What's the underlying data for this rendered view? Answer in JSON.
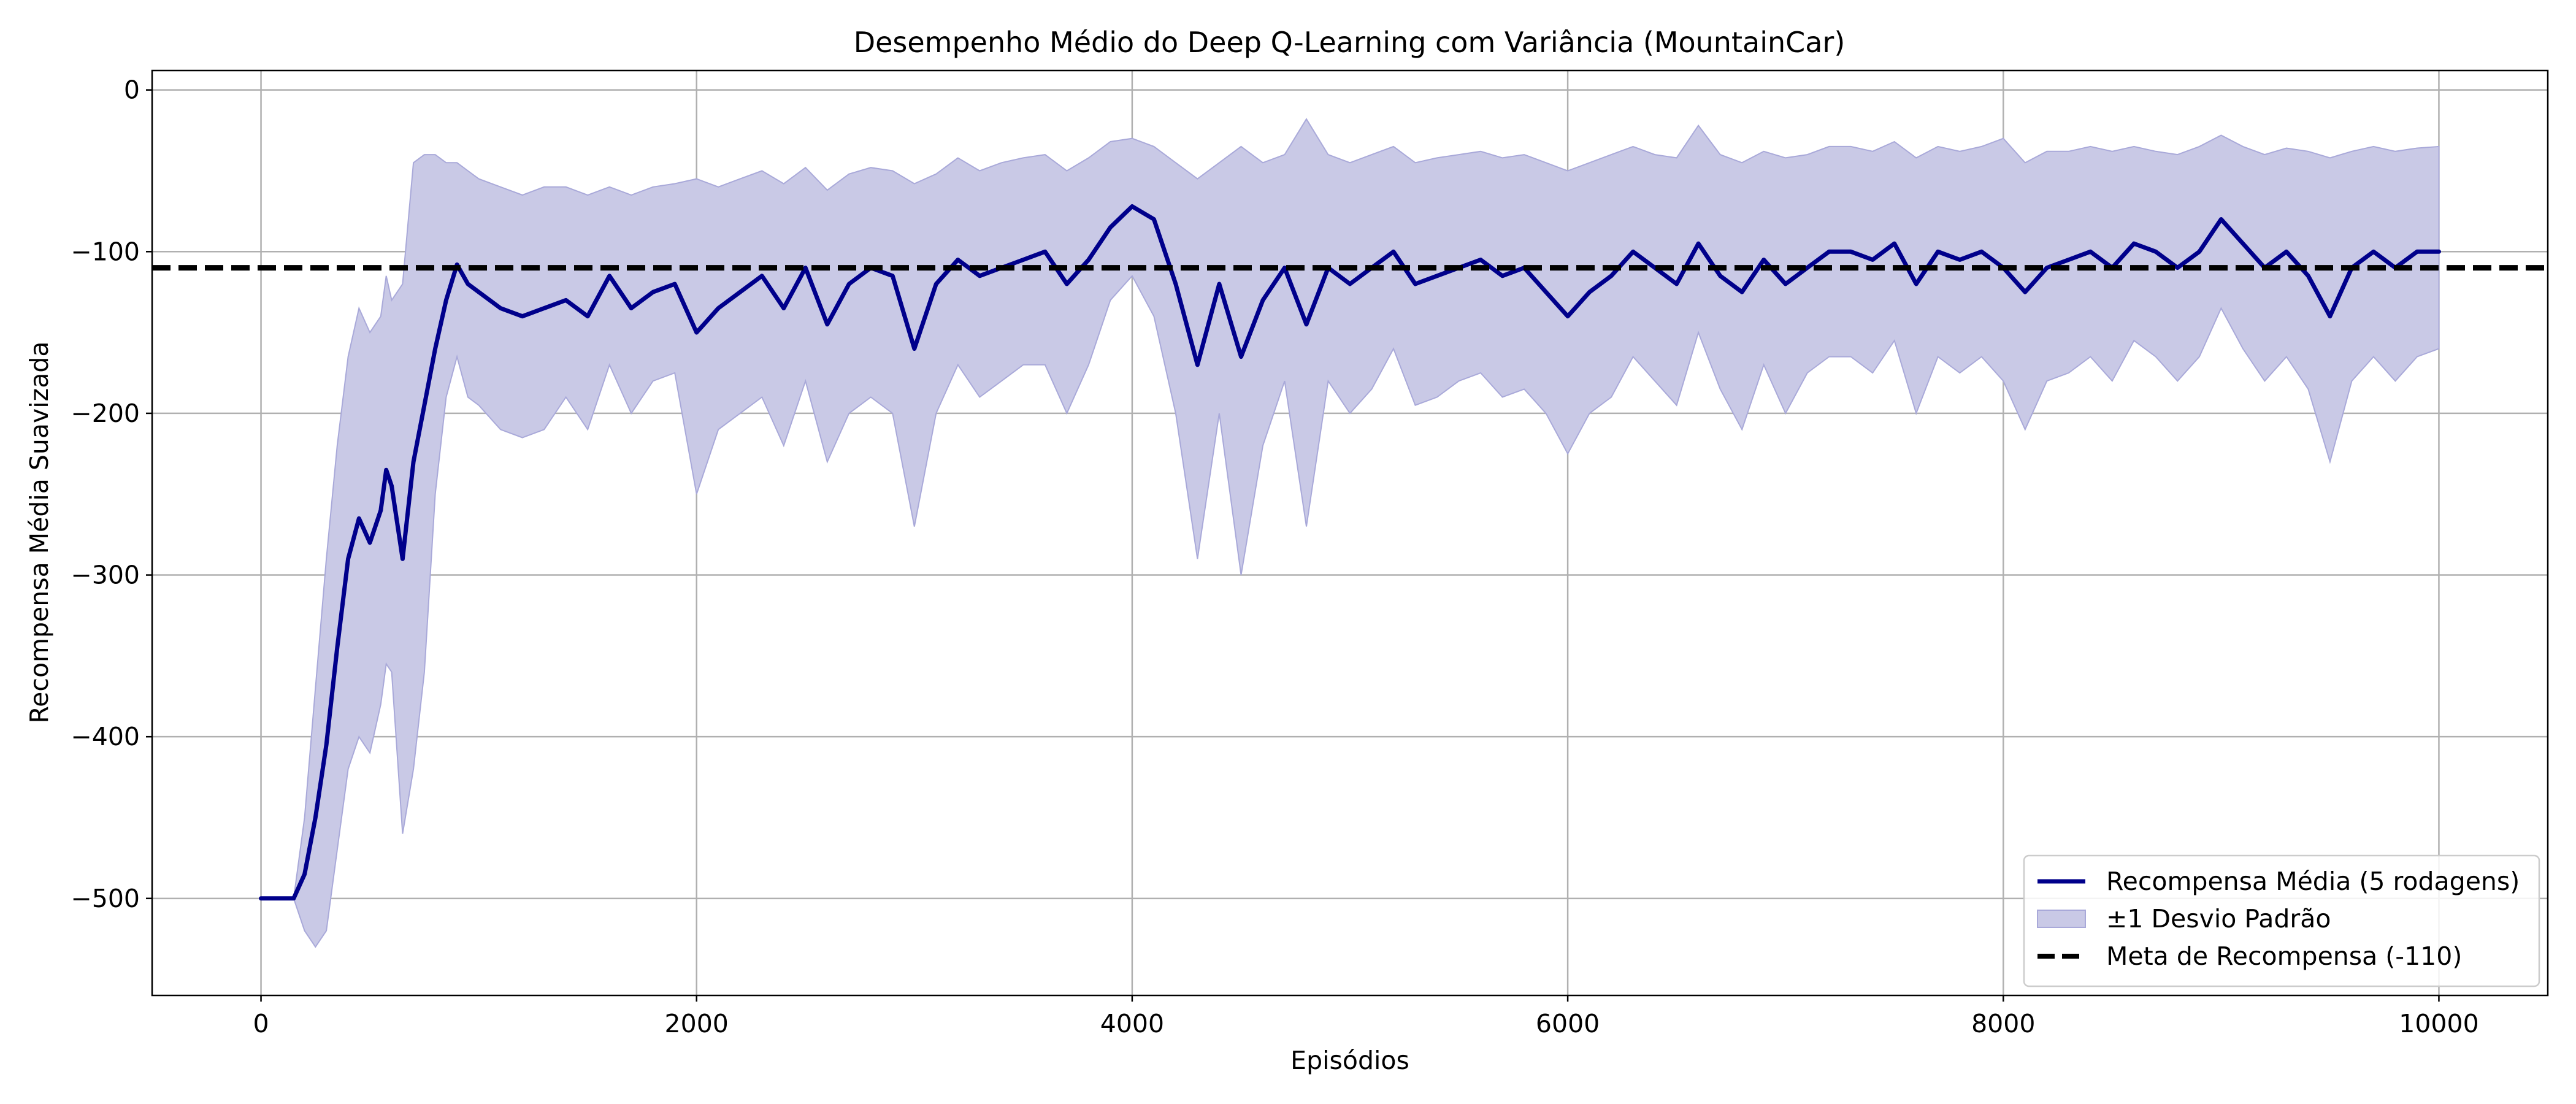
{
  "chart_data": {
    "type": "line",
    "title": "Desempenho Médio do Deep Q-Learning com Variância (MountainCar)",
    "xlabel": "Episódios",
    "ylabel": "Recompensa Média Suavizada",
    "xlim": [
      -500,
      10500
    ],
    "ylim": [
      -560,
      12
    ],
    "xticks": [
      0,
      2000,
      4000,
      6000,
      8000,
      10000
    ],
    "yticks": [
      -500,
      -400,
      -300,
      -200,
      -100,
      0
    ],
    "grid": true,
    "legend_position": "lower right",
    "colors": {
      "mean": "#00008b",
      "band": "#c9c9e6",
      "band_edge": "#a9a9d9",
      "goal": "#000000",
      "grid": "#b0b0b0"
    },
    "series": [
      {
        "name": "Recompensa Média (5 rodagens)",
        "kind": "line",
        "x": [
          0,
          150,
          200,
          250,
          300,
          350,
          400,
          450,
          500,
          550,
          575,
          600,
          650,
          700,
          750,
          800,
          850,
          900,
          950,
          1000,
          1100,
          1200,
          1300,
          1400,
          1500,
          1600,
          1700,
          1800,
          1900,
          2000,
          2100,
          2200,
          2300,
          2400,
          2500,
          2600,
          2700,
          2800,
          2900,
          3000,
          3100,
          3200,
          3300,
          3400,
          3500,
          3600,
          3700,
          3800,
          3900,
          4000,
          4100,
          4200,
          4300,
          4400,
          4500,
          4600,
          4700,
          4800,
          4900,
          5000,
          5100,
          5200,
          5300,
          5400,
          5500,
          5600,
          5700,
          5800,
          5900,
          6000,
          6100,
          6200,
          6300,
          6400,
          6500,
          6600,
          6700,
          6800,
          6900,
          7000,
          7100,
          7200,
          7300,
          7400,
          7500,
          7600,
          7700,
          7800,
          7900,
          8000,
          8100,
          8200,
          8300,
          8400,
          8500,
          8600,
          8700,
          8800,
          8900,
          9000,
          9100,
          9200,
          9300,
          9400,
          9500,
          9600,
          9700,
          9800,
          9900,
          10000
        ],
        "y": [
          -500,
          -500,
          -485,
          -450,
          -405,
          -345,
          -290,
          -265,
          -280,
          -260,
          -235,
          -245,
          -290,
          -230,
          -195,
          -160,
          -130,
          -108,
          -120,
          -125,
          -135,
          -140,
          -135,
          -130,
          -140,
          -115,
          -135,
          -125,
          -120,
          -150,
          -135,
          -125,
          -115,
          -135,
          -110,
          -145,
          -120,
          -110,
          -115,
          -160,
          -120,
          -105,
          -115,
          -110,
          -105,
          -100,
          -120,
          -105,
          -85,
          -72,
          -80,
          -120,
          -170,
          -120,
          -165,
          -130,
          -110,
          -145,
          -110,
          -120,
          -110,
          -100,
          -120,
          -115,
          -110,
          -105,
          -115,
          -110,
          -125,
          -140,
          -125,
          -115,
          -100,
          -110,
          -120,
          -95,
          -115,
          -125,
          -105,
          -120,
          -110,
          -100,
          -100,
          -105,
          -95,
          -120,
          -100,
          -105,
          -100,
          -110,
          -125,
          -110,
          -105,
          -100,
          -110,
          -95,
          -100,
          -110,
          -100,
          -80,
          -95,
          -110,
          -100,
          -115,
          -140,
          -110,
          -100,
          -110,
          -100,
          -100
        ]
      },
      {
        "name": "±1 Desvio Padrão",
        "kind": "band",
        "x": [
          0,
          150,
          200,
          250,
          300,
          350,
          400,
          450,
          500,
          550,
          575,
          600,
          650,
          700,
          750,
          800,
          850,
          900,
          950,
          1000,
          1100,
          1200,
          1300,
          1400,
          1500,
          1600,
          1700,
          1800,
          1900,
          2000,
          2100,
          2200,
          2300,
          2400,
          2500,
          2600,
          2700,
          2800,
          2900,
          3000,
          3100,
          3200,
          3300,
          3400,
          3500,
          3600,
          3700,
          3800,
          3900,
          4000,
          4100,
          4200,
          4300,
          4400,
          4500,
          4600,
          4700,
          4800,
          4900,
          5000,
          5100,
          5200,
          5300,
          5400,
          5500,
          5600,
          5700,
          5800,
          5900,
          6000,
          6100,
          6200,
          6300,
          6400,
          6500,
          6600,
          6700,
          6800,
          6900,
          7000,
          7100,
          7200,
          7300,
          7400,
          7500,
          7600,
          7700,
          7800,
          7900,
          8000,
          8100,
          8200,
          8300,
          8400,
          8500,
          8600,
          8700,
          8800,
          8900,
          9000,
          9100,
          9200,
          9300,
          9400,
          9500,
          9600,
          9700,
          9800,
          9900,
          10000
        ],
        "lower": [
          -500,
          -500,
          -520,
          -530,
          -520,
          -470,
          -420,
          -400,
          -410,
          -380,
          -355,
          -360,
          -460,
          -420,
          -360,
          -250,
          -190,
          -165,
          -190,
          -195,
          -210,
          -215,
          -210,
          -190,
          -210,
          -170,
          -200,
          -180,
          -175,
          -250,
          -210,
          -200,
          -190,
          -220,
          -180,
          -230,
          -200,
          -190,
          -200,
          -270,
          -200,
          -170,
          -190,
          -180,
          -170,
          -170,
          -200,
          -170,
          -130,
          -115,
          -140,
          -200,
          -290,
          -200,
          -300,
          -220,
          -180,
          -270,
          -180,
          -200,
          -185,
          -160,
          -195,
          -190,
          -180,
          -175,
          -190,
          -185,
          -200,
          -225,
          -200,
          -190,
          -165,
          -180,
          -195,
          -150,
          -185,
          -210,
          -170,
          -200,
          -175,
          -165,
          -165,
          -175,
          -155,
          -200,
          -165,
          -175,
          -165,
          -180,
          -210,
          -180,
          -175,
          -165,
          -180,
          -155,
          -165,
          -180,
          -165,
          -135,
          -160,
          -180,
          -165,
          -185,
          -230,
          -180,
          -165,
          -180,
          -165,
          -160
        ],
        "upper": [
          -500,
          -500,
          -450,
          -370,
          -290,
          -220,
          -165,
          -135,
          -150,
          -140,
          -115,
          -130,
          -120,
          -45,
          -40,
          -40,
          -45,
          -45,
          -50,
          -55,
          -60,
          -65,
          -60,
          -60,
          -65,
          -60,
          -65,
          -60,
          -58,
          -55,
          -60,
          -55,
          -50,
          -58,
          -48,
          -62,
          -52,
          -48,
          -50,
          -58,
          -52,
          -42,
          -50,
          -45,
          -42,
          -40,
          -50,
          -42,
          -32,
          -30,
          -35,
          -45,
          -55,
          -45,
          -35,
          -45,
          -40,
          -18,
          -40,
          -45,
          -40,
          -35,
          -45,
          -42,
          -40,
          -38,
          -42,
          -40,
          -45,
          -50,
          -45,
          -40,
          -35,
          -40,
          -42,
          -22,
          -40,
          -45,
          -38,
          -42,
          -40,
          -35,
          -35,
          -38,
          -32,
          -42,
          -35,
          -38,
          -35,
          -30,
          -45,
          -38,
          -38,
          -35,
          -38,
          -35,
          -38,
          -40,
          -35,
          -28,
          -35,
          -40,
          -36,
          -38,
          -42,
          -38,
          -35,
          -38,
          -36,
          -35
        ]
      },
      {
        "name": "Meta de Recompensa (-110)",
        "kind": "hline",
        "y": -110
      }
    ]
  }
}
